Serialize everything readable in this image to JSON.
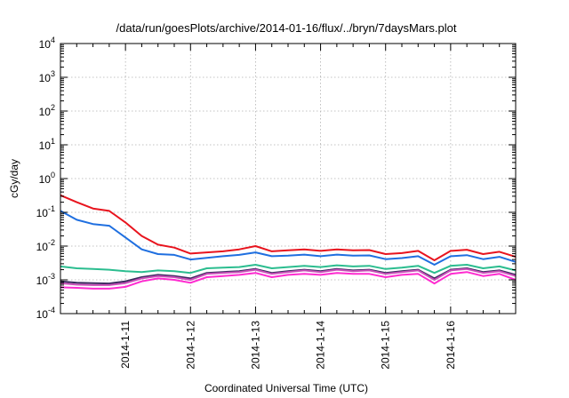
{
  "chart_data": {
    "type": "line",
    "title": "/data/run/goesPlots/archive/2014-01-16/flux/../bryn/7daysMars.plot",
    "xlabel": "Coordinated Universal Time (UTC)",
    "ylabel": "cGy/day",
    "y_scale": "log",
    "ylim": [
      0.0001,
      10000
    ],
    "y_ticks": [
      {
        "value": 0.0001,
        "base": "10",
        "exp": "-4"
      },
      {
        "value": 0.001,
        "base": "10",
        "exp": "-3"
      },
      {
        "value": 0.01,
        "base": "10",
        "exp": "-2"
      },
      {
        "value": 0.1,
        "base": "10",
        "exp": "-1"
      },
      {
        "value": 1,
        "base": "10",
        "exp": "0"
      },
      {
        "value": 10,
        "base": "10",
        "exp": "1"
      },
      {
        "value": 100,
        "base": "10",
        "exp": "2"
      },
      {
        "value": 1000,
        "base": "10",
        "exp": "3"
      },
      {
        "value": 10000,
        "base": "10",
        "exp": "4"
      }
    ],
    "xlim": [
      "2014-01-10T00:00",
      "2014-01-17T00:00"
    ],
    "x_ticks": [
      "2014-1-11",
      "2014-1-12",
      "2014-1-13",
      "2014-1-14",
      "2014-1-15",
      "2014-1-16"
    ],
    "grid": true,
    "x": [
      "2014-01-10T00:00",
      "2014-01-10T06:00",
      "2014-01-10T12:00",
      "2014-01-10T18:00",
      "2014-01-11T00:00",
      "2014-01-11T06:00",
      "2014-01-11T12:00",
      "2014-01-11T18:00",
      "2014-01-12T00:00",
      "2014-01-12T06:00",
      "2014-01-12T12:00",
      "2014-01-12T18:00",
      "2014-01-13T00:00",
      "2014-01-13T06:00",
      "2014-01-13T12:00",
      "2014-01-13T18:00",
      "2014-01-14T00:00",
      "2014-01-14T06:00",
      "2014-01-14T12:00",
      "2014-01-14T18:00",
      "2014-01-15T00:00",
      "2014-01-15T06:00",
      "2014-01-15T12:00",
      "2014-01-15T18:00",
      "2014-01-16T00:00",
      "2014-01-16T06:00",
      "2014-01-16T12:00",
      "2014-01-16T18:00",
      "2014-01-17T00:00"
    ],
    "series": [
      {
        "color": "#e8141e",
        "values": [
          0.32,
          0.2,
          0.13,
          0.11,
          0.05,
          0.02,
          0.011,
          0.009,
          0.006,
          0.0065,
          0.007,
          0.008,
          0.01,
          0.007,
          0.0075,
          0.008,
          0.0072,
          0.008,
          0.0075,
          0.0076,
          0.0058,
          0.0062,
          0.0072,
          0.0038,
          0.0072,
          0.0078,
          0.0058,
          0.0068,
          0.0048
        ]
      },
      {
        "color": "#1f6fe0",
        "values": [
          0.11,
          0.06,
          0.045,
          0.04,
          0.018,
          0.008,
          0.0058,
          0.0055,
          0.004,
          0.0045,
          0.005,
          0.0055,
          0.0065,
          0.005,
          0.0052,
          0.0056,
          0.005,
          0.0056,
          0.0052,
          0.0053,
          0.0041,
          0.0044,
          0.005,
          0.0028,
          0.005,
          0.0054,
          0.0041,
          0.0048,
          0.0034
        ]
      },
      {
        "color": "#2bbd8f",
        "values": [
          0.0025,
          0.0022,
          0.0021,
          0.002,
          0.0018,
          0.0017,
          0.0019,
          0.0018,
          0.0016,
          0.0022,
          0.0023,
          0.0024,
          0.0028,
          0.0022,
          0.0024,
          0.0026,
          0.0024,
          0.0027,
          0.0025,
          0.0026,
          0.0021,
          0.0023,
          0.0026,
          0.0016,
          0.0026,
          0.0028,
          0.0022,
          0.0025,
          0.0019
        ]
      },
      {
        "color": "#3a2a5e",
        "values": [
          0.0009,
          0.00082,
          0.0008,
          0.00078,
          0.0009,
          0.0012,
          0.0014,
          0.0013,
          0.0011,
          0.0016,
          0.0017,
          0.0018,
          0.0021,
          0.0016,
          0.0018,
          0.002,
          0.0018,
          0.0021,
          0.0019,
          0.002,
          0.0016,
          0.0018,
          0.002,
          0.0011,
          0.002,
          0.0022,
          0.0017,
          0.0019,
          0.0014
        ]
      },
      {
        "color": "#c84fb8",
        "values": [
          0.0008,
          0.00072,
          0.0007,
          0.0007,
          0.0008,
          0.0011,
          0.0013,
          0.0012,
          0.001,
          0.0015,
          0.0016,
          0.0017,
          0.002,
          0.0015,
          0.0017,
          0.0019,
          0.0017,
          0.002,
          0.0018,
          0.0019,
          0.0015,
          0.0017,
          0.0019,
          0.001,
          0.0019,
          0.0021,
          0.0016,
          0.0018,
          0.0013
        ]
      },
      {
        "color": "#ff2bd0",
        "values": [
          0.0006,
          0.00058,
          0.00055,
          0.00055,
          0.00062,
          0.0009,
          0.0011,
          0.001,
          0.00082,
          0.0012,
          0.0013,
          0.0014,
          0.0016,
          0.0012,
          0.0014,
          0.0015,
          0.0014,
          0.0016,
          0.0015,
          0.0015,
          0.0012,
          0.0014,
          0.0015,
          0.00078,
          0.0015,
          0.0017,
          0.0013,
          0.0015,
          0.001
        ]
      }
    ]
  }
}
